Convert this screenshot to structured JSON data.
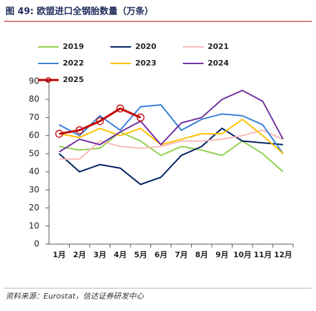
{
  "chart_data": {
    "type": "line",
    "title": "图 49: 欧盟进口全钢胎数量（万条）",
    "source": "资料来源：Eurostat，信达证券研发中心",
    "categories": [
      "1月",
      "2月",
      "3月",
      "4月",
      "5月",
      "6月",
      "7月",
      "8月",
      "9月",
      "10月",
      "11月",
      "12月"
    ],
    "series": [
      {
        "name": "2019",
        "color": "#92d050",
        "values": [
          54,
          52,
          53,
          62,
          57,
          49,
          54,
          52,
          49,
          57,
          50,
          40
        ]
      },
      {
        "name": "2020",
        "color": "#002060",
        "values": [
          50,
          40,
          44,
          42,
          33,
          37,
          49,
          54,
          64,
          57,
          56,
          55
        ]
      },
      {
        "name": "2021",
        "color": "#f8b8b8",
        "values": [
          47,
          47,
          57,
          54,
          53,
          54,
          57,
          57,
          58,
          60,
          63,
          58
        ]
      },
      {
        "name": "2022",
        "color": "#3a80d8",
        "values": [
          66,
          60,
          71,
          63,
          76,
          77,
          63,
          69,
          72,
          71,
          66,
          50
        ]
      },
      {
        "name": "2023",
        "color": "#ffc000",
        "values": [
          61,
          59,
          64,
          60,
          64,
          55,
          58,
          61,
          61,
          69,
          60,
          50
        ]
      },
      {
        "name": "2024",
        "color": "#7030a0",
        "values": [
          51,
          58,
          55,
          62,
          68,
          55,
          67,
          70,
          80,
          85,
          79,
          58
        ]
      },
      {
        "name": "2025",
        "color": "#c00000",
        "markers": true,
        "values": [
          61,
          63,
          68,
          75,
          70,
          null,
          null,
          null,
          null,
          null,
          null,
          null
        ]
      }
    ],
    "ylim": [
      0,
      90
    ],
    "yticks": [
      0,
      10,
      20,
      30,
      40,
      50,
      60,
      70,
      80,
      90
    ]
  }
}
